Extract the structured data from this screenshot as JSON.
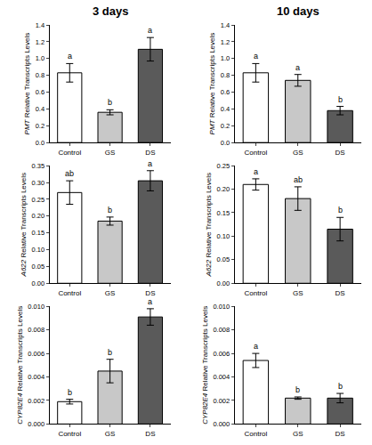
{
  "chart_data": [
    {
      "type": "bar",
      "title": "3 days",
      "y_label": "PMT Relative Transcripts Levels",
      "categories": [
        "Control",
        "GS",
        "DS"
      ],
      "values": [
        0.83,
        0.36,
        1.11
      ],
      "errors": [
        0.11,
        0.03,
        0.14
      ],
      "colors": [
        "#ffffff",
        "#c8c8c8",
        "#5a5a5a"
      ],
      "ylim": [
        0,
        1.4
      ],
      "yticks": [
        {
          "value": 0,
          "label": "0.0"
        },
        0.2,
        0.4,
        0.6,
        0.8,
        {
          "value": 1,
          "label": "1.0"
        },
        1.2,
        1.4
      ],
      "annotations": [
        {
          "category": "Control",
          "text": "a"
        },
        {
          "category": "GS",
          "text": "b"
        },
        {
          "category": "DS",
          "text": "a"
        }
      ],
      "grid": false
    },
    {
      "type": "bar",
      "title": "10 days",
      "y_label": "PMT Relative Transcripts Levels",
      "categories": [
        "Control",
        "GS",
        "DS"
      ],
      "values": [
        0.83,
        0.74,
        0.38
      ],
      "errors": [
        0.11,
        0.07,
        0.05
      ],
      "colors": [
        "#ffffff",
        "#c8c8c8",
        "#5a5a5a"
      ],
      "ylim": [
        0,
        1.4
      ],
      "yticks": [
        {
          "value": 0,
          "label": "0.0"
        },
        0.2,
        0.4,
        0.6,
        0.8,
        {
          "value": 1,
          "label": "1.0"
        },
        1.2,
        1.4
      ],
      "annotations": [
        {
          "category": "Control",
          "text": "a"
        },
        {
          "category": "GS",
          "text": "a"
        },
        {
          "category": "DS",
          "text": "b"
        }
      ],
      "grid": false
    },
    {
      "type": "bar",
      "y_label": "A622 Relative Transcripts Levels",
      "categories": [
        "Control",
        "GS",
        "DS"
      ],
      "values": [
        0.27,
        0.185,
        0.305
      ],
      "errors": [
        0.035,
        0.012,
        0.03
      ],
      "colors": [
        "#ffffff",
        "#c8c8c8",
        "#5a5a5a"
      ],
      "ylim": [
        0,
        0.35
      ],
      "yticks": [
        {
          "value": 0,
          "label": "0.00"
        },
        0.05,
        {
          "value": 0.1,
          "label": "0.10"
        },
        0.15,
        {
          "value": 0.2,
          "label": "0.20"
        },
        0.25,
        {
          "value": 0.3,
          "label": "0.30"
        },
        0.35
      ],
      "annotations": [
        {
          "category": "Control",
          "text": "ab"
        },
        {
          "category": "GS",
          "text": "b"
        },
        {
          "category": "DS",
          "text": "a"
        }
      ],
      "grid": false
    },
    {
      "type": "bar",
      "y_label": "A622 Relative Transcripts Levels",
      "categories": [
        "Control",
        "GS",
        "DS"
      ],
      "values": [
        0.21,
        0.18,
        0.115
      ],
      "errors": [
        0.012,
        0.025,
        0.025
      ],
      "colors": [
        "#ffffff",
        "#c8c8c8",
        "#5a5a5a"
      ],
      "ylim": [
        0,
        0.25
      ],
      "yticks": [
        {
          "value": 0,
          "label": "0.00"
        },
        0.05,
        {
          "value": 0.1,
          "label": "0.10"
        },
        0.15,
        {
          "value": 0.2,
          "label": "0.20"
        },
        0.25
      ],
      "annotations": [
        {
          "category": "Control",
          "text": "a"
        },
        {
          "category": "GS",
          "text": "ab"
        },
        {
          "category": "DS",
          "text": "b"
        }
      ],
      "grid": false
    },
    {
      "type": "bar",
      "y_label": "CYP82E4 Relative Transcripts Levels",
      "categories": [
        "Control",
        "GS",
        "DS"
      ],
      "values": [
        0.0019,
        0.0045,
        0.0091
      ],
      "errors": [
        0.0002,
        0.001,
        0.0007
      ],
      "colors": [
        "#ffffff",
        "#c8c8c8",
        "#5a5a5a"
      ],
      "ylim": [
        0,
        0.01
      ],
      "yticks": [
        {
          "value": 0,
          "label": "0.000"
        },
        0.002,
        0.004,
        0.006,
        0.008,
        {
          "value": 0.01,
          "label": "0.010"
        }
      ],
      "annotations": [
        {
          "category": "Control",
          "text": "b"
        },
        {
          "category": "GS",
          "text": "b"
        },
        {
          "category": "DS",
          "text": "a"
        }
      ],
      "grid": false
    },
    {
      "type": "bar",
      "y_label": "CYP82E4 Relative Transcripts Levels",
      "categories": [
        "Control",
        "GS",
        "DS"
      ],
      "values": [
        0.0054,
        0.0022,
        0.0022
      ],
      "errors": [
        0.0006,
        0.0001,
        0.0004
      ],
      "colors": [
        "#ffffff",
        "#c8c8c8",
        "#5a5a5a"
      ],
      "ylim": [
        0,
        0.01
      ],
      "yticks": [
        {
          "value": 0,
          "label": "0.000"
        },
        0.002,
        0.004,
        0.006,
        0.008,
        {
          "value": 0.01,
          "label": "0.010"
        }
      ],
      "annotations": [
        {
          "category": "Control",
          "text": "a"
        },
        {
          "category": "GS",
          "text": "b"
        },
        {
          "category": "DS",
          "text": "b"
        }
      ],
      "grid": false
    }
  ]
}
